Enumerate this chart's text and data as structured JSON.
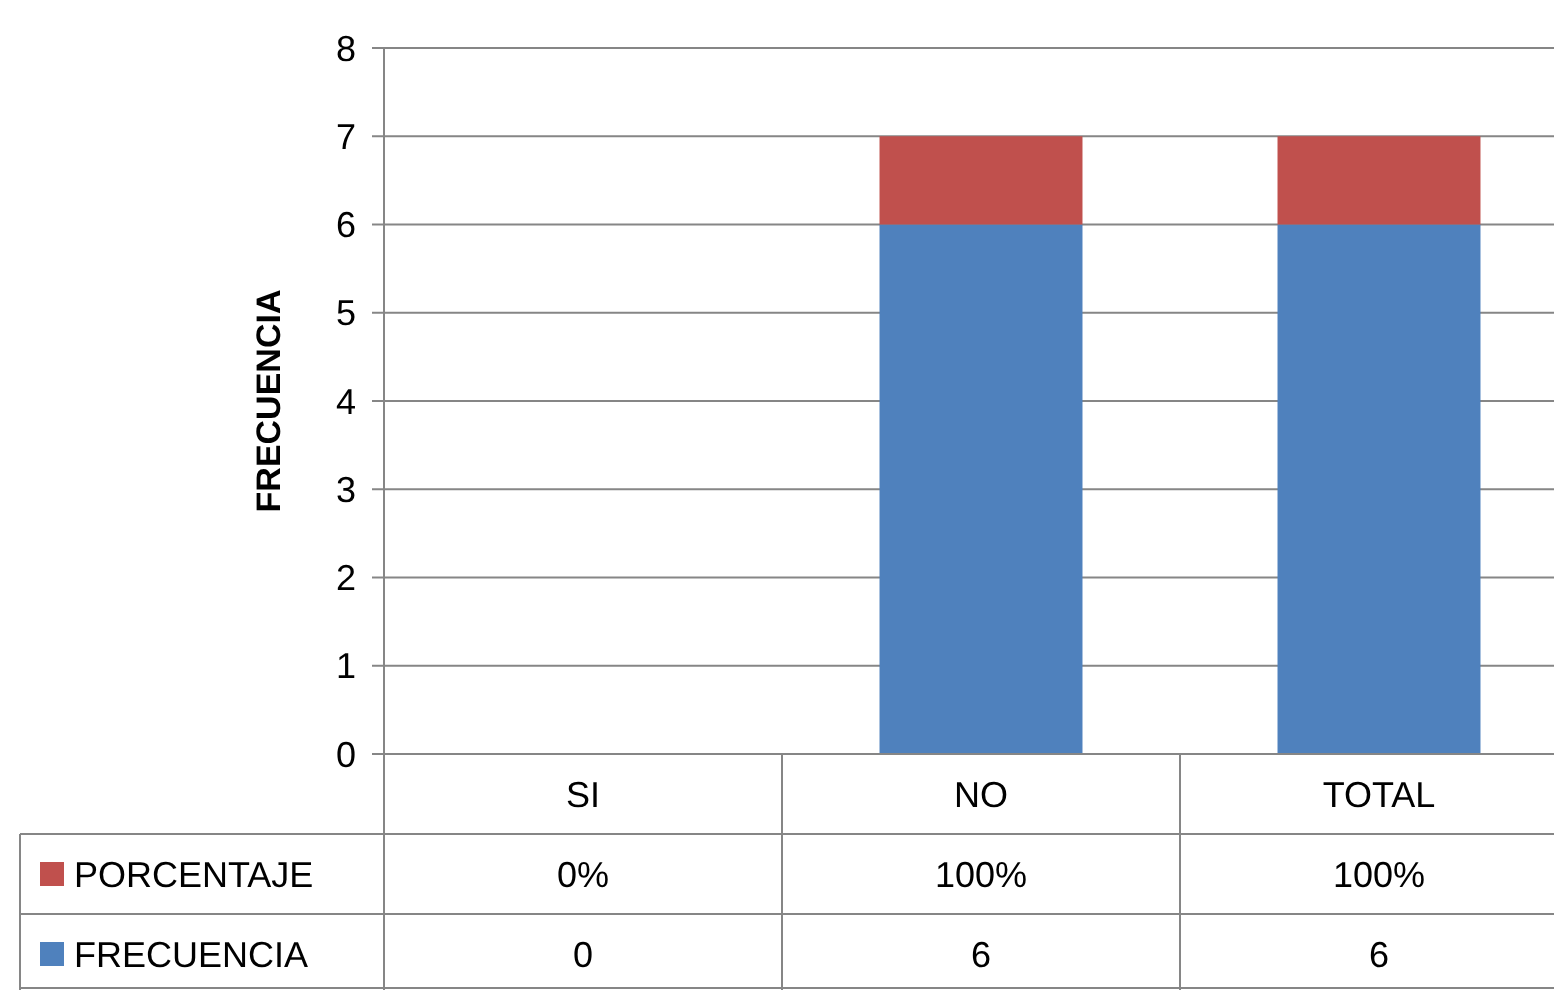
{
  "chart_data": {
    "type": "bar",
    "stacked": true,
    "ylabel": "FRECUENCIA",
    "categories": [
      "SI",
      "NO",
      "TOTAL"
    ],
    "series": [
      {
        "name": "FRECUENCIA",
        "color": "#4f81bd",
        "values": [
          0,
          6,
          6
        ],
        "value_labels": [
          "0",
          "6",
          "6"
        ]
      },
      {
        "name": "PORCENTAJE",
        "color": "#c0504d",
        "values": [
          0,
          1,
          1
        ],
        "value_labels": [
          "0%",
          "100%",
          "100%"
        ]
      }
    ],
    "ylim": [
      0,
      8
    ],
    "yticks": [
      0,
      1,
      2,
      3,
      4,
      5,
      6,
      7,
      8
    ],
    "grid": "y",
    "legend": "left"
  }
}
